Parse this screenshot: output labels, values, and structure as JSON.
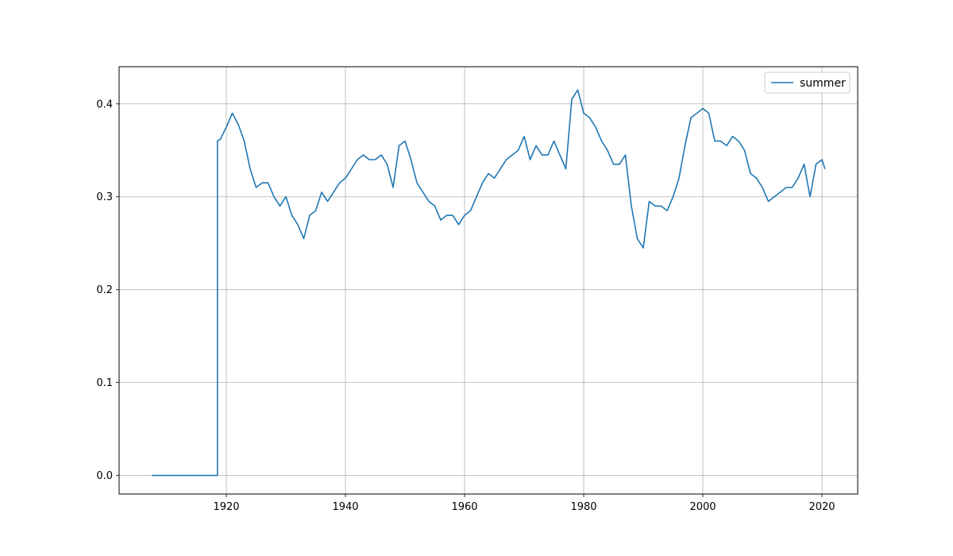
{
  "chart_data": {
    "type": "line",
    "title": "",
    "xlabel": "",
    "ylabel": "",
    "xlim": [
      1902,
      2026
    ],
    "ylim": [
      -0.02,
      0.44
    ],
    "xticks": [
      1920,
      1940,
      1960,
      1980,
      2000,
      2020
    ],
    "yticks": [
      0.0,
      0.1,
      0.2,
      0.3,
      0.4
    ],
    "xtick_labels": [
      "1920",
      "1940",
      "1960",
      "1980",
      "2000",
      "2020"
    ],
    "ytick_labels": [
      "0.0",
      "0.1",
      "0.2",
      "0.3",
      "0.4"
    ],
    "grid": true,
    "legend_position": "top-right",
    "series": [
      {
        "name": "summer",
        "color": "#1f77b4",
        "x": [
          1907.5,
          1918.5,
          1918.5,
          1919,
          1920,
          1921,
          1922,
          1923,
          1924,
          1925,
          1926,
          1927,
          1928,
          1929,
          1930,
          1931,
          1932,
          1933,
          1934,
          1935,
          1936,
          1937,
          1938,
          1939,
          1940,
          1941,
          1942,
          1943,
          1944,
          1945,
          1946,
          1947,
          1948,
          1949,
          1950,
          1951,
          1952,
          1953,
          1954,
          1955,
          1956,
          1957,
          1958,
          1959,
          1960,
          1961,
          1962,
          1963,
          1964,
          1965,
          1966,
          1967,
          1968,
          1969,
          1970,
          1971,
          1972,
          1973,
          1974,
          1975,
          1976,
          1977,
          1978,
          1979,
          1980,
          1981,
          1982,
          1983,
          1984,
          1985,
          1986,
          1987,
          1988,
          1989,
          1990,
          1991,
          1992,
          1993,
          1994,
          1995,
          1996,
          1997,
          1998,
          1999,
          2000,
          2001,
          2002,
          2003,
          2004,
          2005,
          2006,
          2007,
          2008,
          2009,
          2010,
          2011,
          2012,
          2013,
          2014,
          2015,
          2016,
          2017,
          2018,
          2019,
          2020,
          2020.5
        ],
        "values": [
          0.0,
          0.0,
          0.36,
          0.362,
          0.375,
          0.39,
          0.378,
          0.36,
          0.33,
          0.31,
          0.315,
          0.315,
          0.3,
          0.29,
          0.3,
          0.28,
          0.27,
          0.255,
          0.28,
          0.285,
          0.305,
          0.295,
          0.305,
          0.315,
          0.32,
          0.33,
          0.34,
          0.345,
          0.34,
          0.34,
          0.345,
          0.335,
          0.31,
          0.355,
          0.36,
          0.34,
          0.315,
          0.305,
          0.295,
          0.29,
          0.275,
          0.28,
          0.28,
          0.27,
          0.28,
          0.285,
          0.3,
          0.315,
          0.325,
          0.32,
          0.33,
          0.34,
          0.345,
          0.35,
          0.365,
          0.34,
          0.355,
          0.345,
          0.345,
          0.36,
          0.345,
          0.33,
          0.405,
          0.415,
          0.39,
          0.385,
          0.375,
          0.36,
          0.35,
          0.335,
          0.335,
          0.345,
          0.29,
          0.255,
          0.245,
          0.295,
          0.29,
          0.29,
          0.285,
          0.3,
          0.32,
          0.355,
          0.385,
          0.39,
          0.395,
          0.39,
          0.36,
          0.36,
          0.355,
          0.365,
          0.36,
          0.35,
          0.325,
          0.32,
          0.31,
          0.295,
          0.3,
          0.305,
          0.31,
          0.31,
          0.32,
          0.335,
          0.3,
          0.335,
          0.34,
          0.33
        ]
      }
    ]
  }
}
